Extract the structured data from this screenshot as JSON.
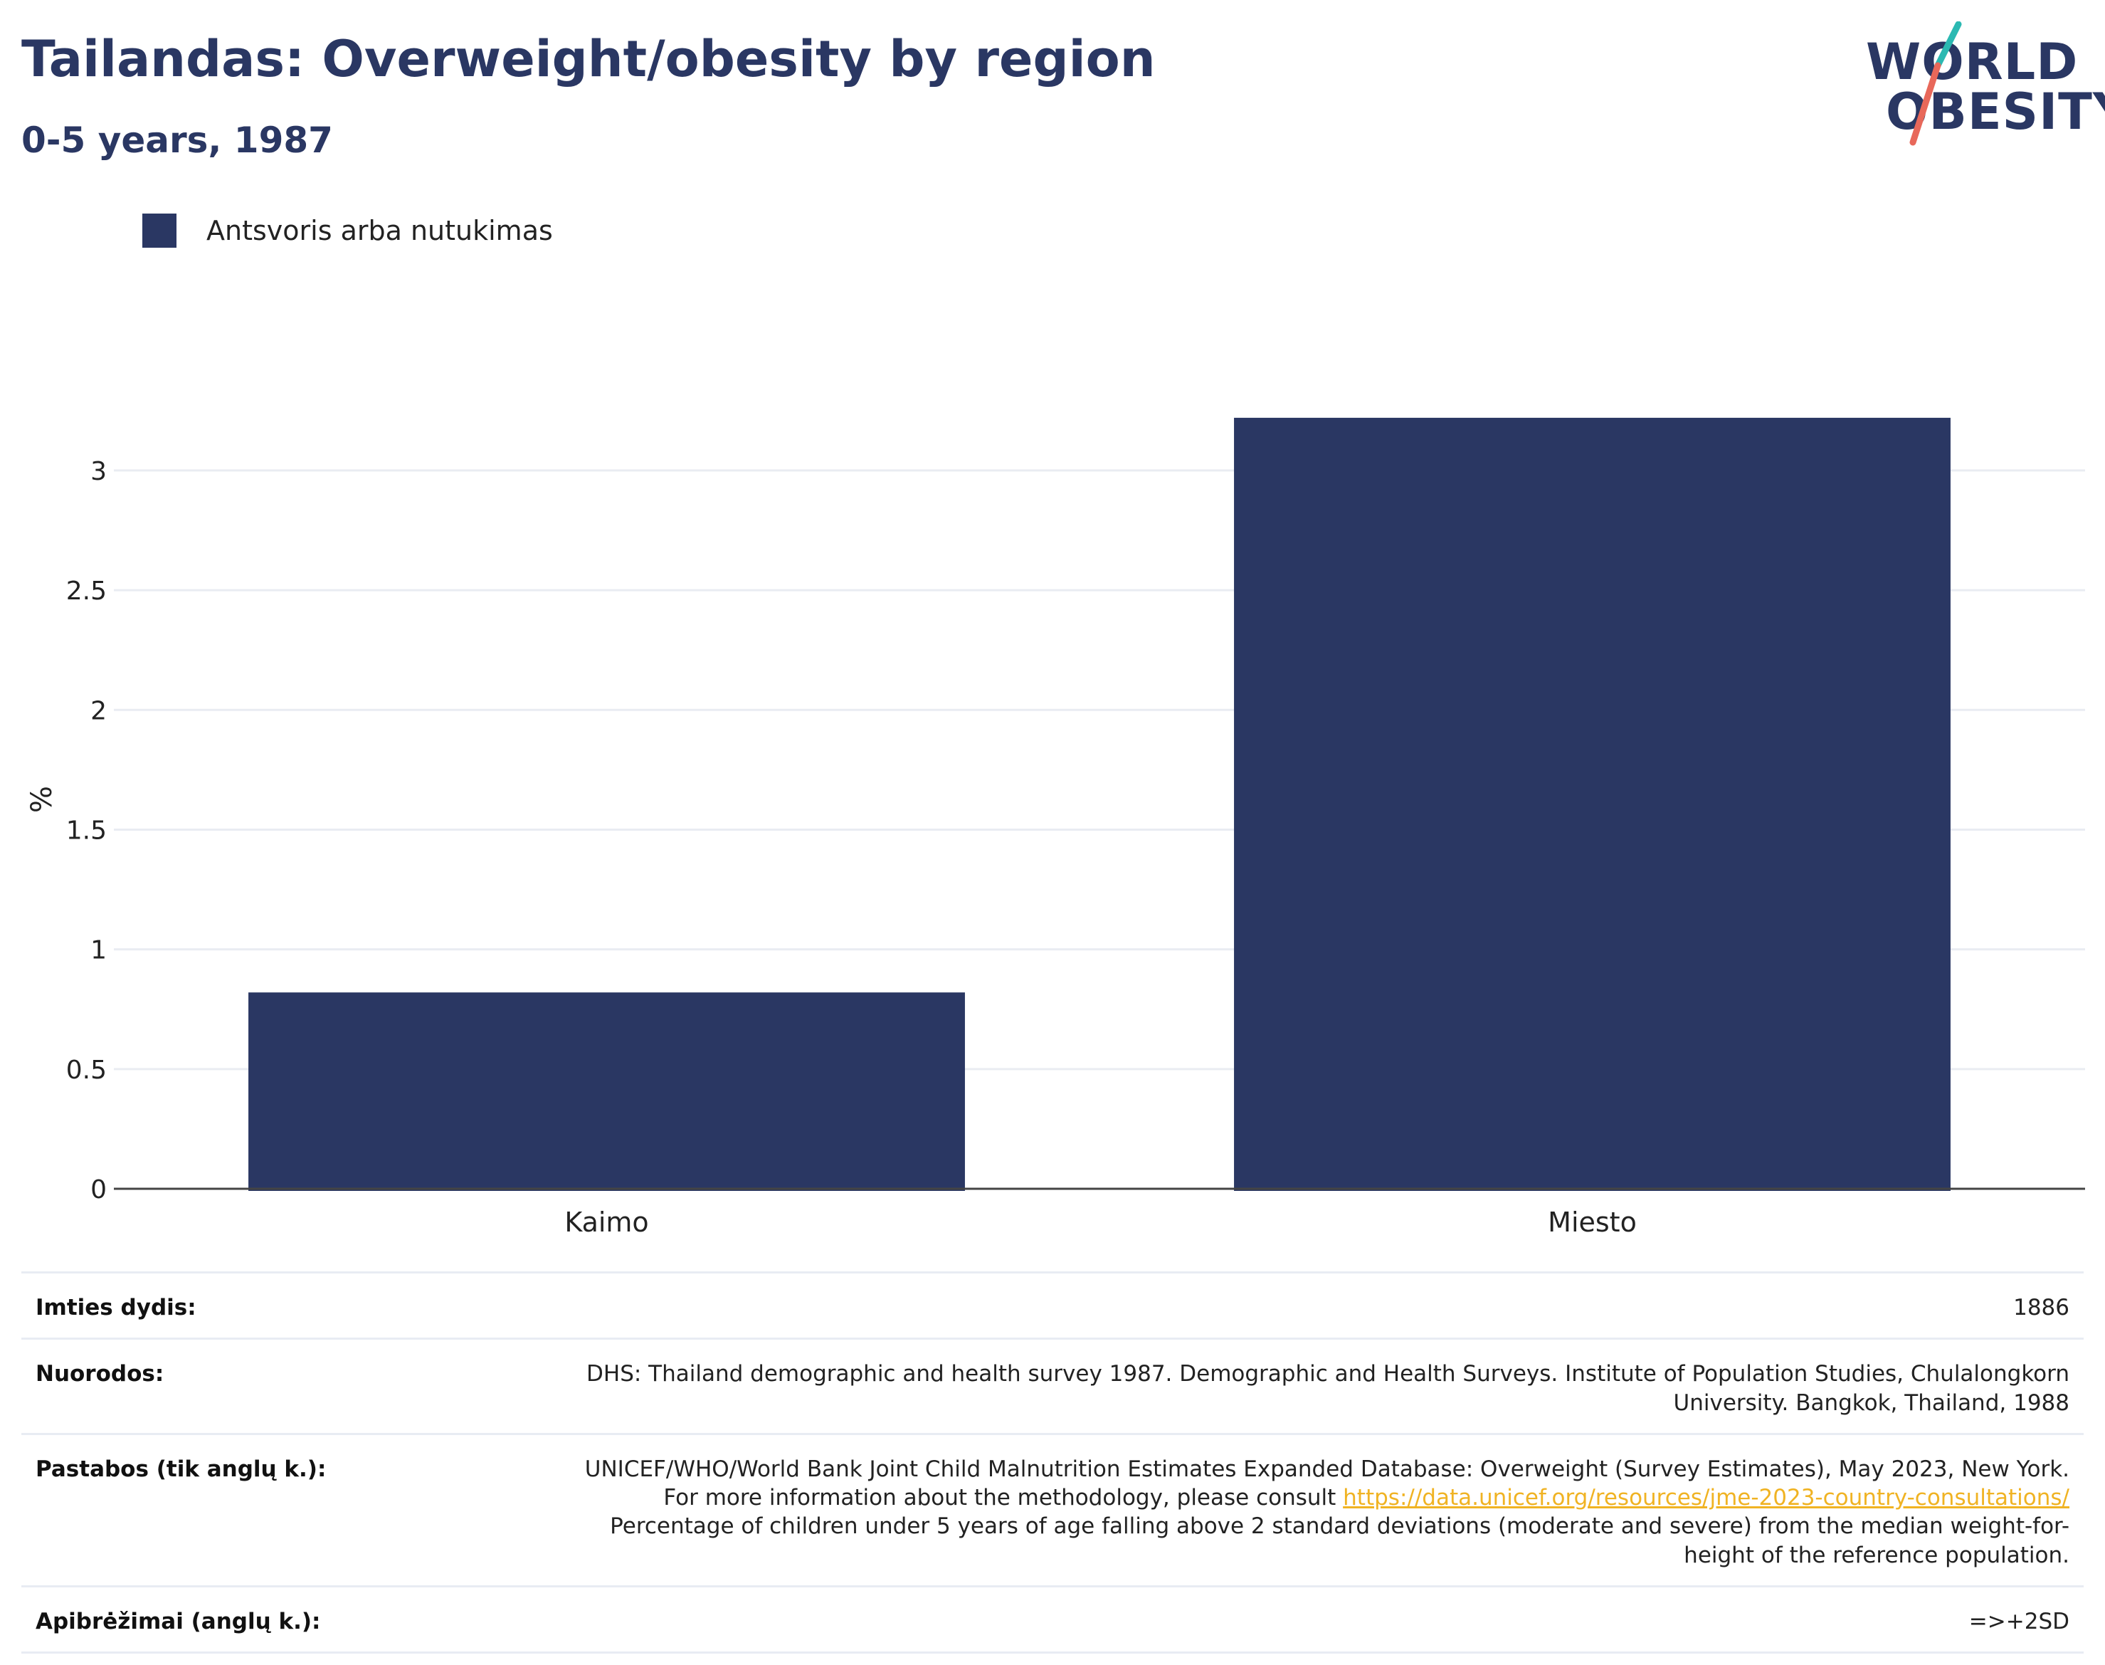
{
  "header": {
    "title": "Tailandas: Overweight/obesity by region",
    "subtitle": "0-5 years, 1987"
  },
  "logo": {
    "line1": "WORLD",
    "line2": "OBESITY",
    "colors": {
      "text": "#2a3763",
      "slash_top": "#2bb9b2",
      "slash_bottom": "#e8685a"
    }
  },
  "legend": {
    "entries": [
      {
        "label": "Antsvoris arba nutukimas",
        "color": "#2a3763"
      }
    ]
  },
  "chart_data": {
    "type": "bar",
    "categories": [
      "Kaimo",
      "Miesto"
    ],
    "series": [
      {
        "name": "Antsvoris arba nutukimas",
        "values": [
          0.82,
          3.22
        ],
        "color": "#2a3763"
      }
    ],
    "ylabel": "%",
    "xlabel": "",
    "ylim": [
      0,
      3.3
    ],
    "yticks": [
      0,
      0.5,
      1,
      1.5,
      2,
      2.5,
      3
    ],
    "ytick_labels": [
      "0",
      "0.5",
      "1",
      "1.5",
      "2",
      "2.5",
      "3"
    ],
    "grid": true,
    "legend_position": "top-left"
  },
  "info": {
    "sample_label": "Imties dydis:",
    "sample_value": "1886",
    "refs_label": "Nuorodos:",
    "refs_value": "DHS: Thailand demographic and health survey 1987. Demographic and Health Surveys. Institute of Population Studies, Chulalongkorn University. Bangkok, Thailand, 1988",
    "notes_label": "Pastabos (tik anglų k.):",
    "notes_before": "UNICEF/WHO/World Bank Joint Child Malnutrition Estimates Expanded Database: Overweight (Survey Estimates), May 2023, New York. For more information about the methodology, please consult ",
    "notes_link": "https://data.unicef.org/resources/jme-2023-country-consultations/",
    "notes_after": " Percentage of children under 5 years of age falling above 2 standard deviations (moderate and severe) from the median weight-for-height of the reference population.",
    "defs_label": "Apibrėžimai (anglų k.):",
    "defs_value": "=>+2SD"
  }
}
